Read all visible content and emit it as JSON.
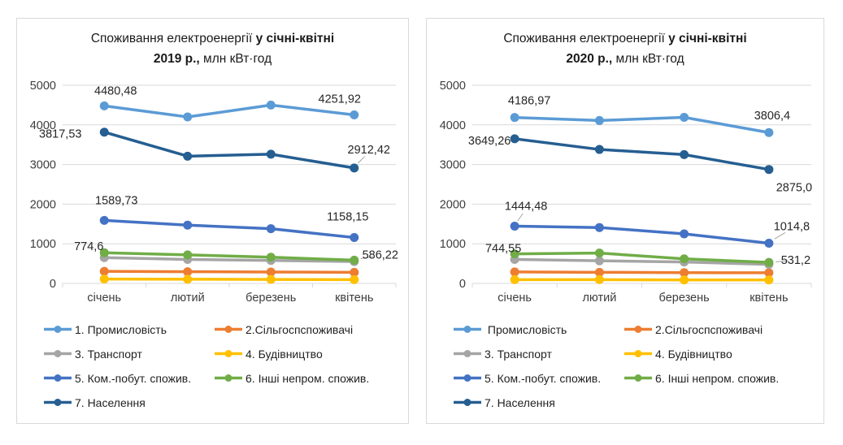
{
  "chart_data": [
    {
      "id": "2019",
      "type": "line",
      "title": {
        "prefix": "Споживання електроенергії ",
        "bold_range": "у січні-квітні",
        "bold_year": "2019 р.,",
        "suffix": " млн кВт·год"
      },
      "categories": [
        "січень",
        "лютий",
        "березень",
        "квітень"
      ],
      "y_ticks": [
        0,
        1000,
        2000,
        3000,
        4000,
        5000
      ],
      "ylim": [
        0,
        5000
      ],
      "grid": true,
      "legend_position": "bottom",
      "series": [
        {
          "name": "1. Промисловість",
          "color": "#5B9BD5",
          "values": [
            4480.48,
            4200,
            4500,
            4251.92
          ],
          "labels": [
            {
              "i": 0,
              "text": "4480,48",
              "dx": 14,
              "dy": -19
            },
            {
              "i": 3,
              "text": "4251,92",
              "dx": -18,
              "dy": -20
            }
          ]
        },
        {
          "name": "2.Сільгоспспоживачі",
          "color": "#ED7D31",
          "values": [
            305,
            295,
            288,
            280
          ],
          "labels": []
        },
        {
          "name": "3. Транспорт",
          "color": "#A5A5A5",
          "values": [
            650,
            605,
            580,
            550
          ],
          "labels": []
        },
        {
          "name": "4. Будівництво",
          "color": "#FFC000",
          "values": [
            110,
            105,
            100,
            95
          ],
          "labels": []
        },
        {
          "name": "5. Ком.-побут. спожив.",
          "color": "#4472C4",
          "values": [
            1589.73,
            1470,
            1380,
            1158.15
          ],
          "labels": [
            {
              "i": 0,
              "text": "1589,73",
              "dx": 15,
              "dy": -25
            },
            {
              "i": 3,
              "text": "1158,15",
              "dx": -8,
              "dy": -26
            }
          ]
        },
        {
          "name": "6. Інші непром. спожив.",
          "color": "#70AD47",
          "values": [
            774.6,
            720,
            660,
            586.22
          ],
          "labels": [
            {
              "i": 0,
              "text": "774,6",
              "dx": -19,
              "dy": -8
            },
            {
              "i": 3,
              "text": "586,22",
              "dx": 32,
              "dy": -7,
              "leader": true
            }
          ]
        },
        {
          "name": "7. Населення",
          "color": "#255E91",
          "values": [
            3817.53,
            3210,
            3260,
            2912.42
          ],
          "labels": [
            {
              "i": 0,
              "text": "3817,53",
              "dx": -54,
              "dy": 2
            },
            {
              "i": 3,
              "text": "2912,42",
              "dx": 18,
              "dy": -23,
              "leader": true
            }
          ]
        }
      ],
      "legend": [
        "1. Промисловість",
        "2.Сільгоспспоживачі",
        "3. Транспорт",
        "4. Будівництво",
        "5. Ком.-побут. спожив.",
        "6. Інші непром. спожив.",
        "7. Населення"
      ]
    },
    {
      "id": "2020",
      "type": "line",
      "title": {
        "prefix": "Споживання електроенергії ",
        "bold_range": "у січні-квітні",
        "bold_year": "2020 р.,",
        "suffix": " млн кВт·год"
      },
      "categories": [
        "січень",
        "лютий",
        "березень",
        "квітень"
      ],
      "y_ticks": [
        0,
        1000,
        2000,
        3000,
        4000,
        5000
      ],
      "ylim": [
        0,
        5000
      ],
      "grid": true,
      "legend_position": "bottom",
      "series": [
        {
          "name": "Промисловість",
          "color": "#5B9BD5",
          "values": [
            4186.97,
            4110,
            4190,
            3806.4
          ],
          "labels": [
            {
              "i": 0,
              "text": "4186,97",
              "dx": 18,
              "dy": -21
            },
            {
              "i": 3,
              "text": "3806,4",
              "dx": 4,
              "dy": -21
            }
          ]
        },
        {
          "name": "2.Сільгоспспоживачі",
          "color": "#ED7D31",
          "values": [
            290,
            280,
            272,
            268
          ],
          "labels": []
        },
        {
          "name": "3. Транспорт",
          "color": "#A5A5A5",
          "values": [
            605,
            570,
            540,
            480
          ],
          "labels": []
        },
        {
          "name": "4. Будівництво",
          "color": "#FFC000",
          "values": [
            95,
            95,
            88,
            88
          ],
          "labels": []
        },
        {
          "name": "5. Ком.-побут. спожив.",
          "color": "#4472C4",
          "values": [
            1444.48,
            1410,
            1250,
            1014.8
          ],
          "labels": [
            {
              "i": 0,
              "text": "1444,48",
              "dx": 14,
              "dy": -25,
              "leader": true
            },
            {
              "i": 3,
              "text": "1014,8",
              "dx": 28,
              "dy": -21,
              "leader": true
            }
          ]
        },
        {
          "name": "6. Інші непром. спожив.",
          "color": "#70AD47",
          "values": [
            744.55,
            765,
            620,
            531.2
          ],
          "labels": [
            {
              "i": 0,
              "text": "744,55",
              "dx": -14,
              "dy": -7
            },
            {
              "i": 3,
              "text": "531,2",
              "dx": 33,
              "dy": -3,
              "leader": true
            }
          ]
        },
        {
          "name": "7. Населення",
          "color": "#255E91",
          "values": [
            3649.26,
            3380,
            3250,
            2875.0
          ],
          "labels": [
            {
              "i": 0,
              "text": "3649,26",
              "dx": -31,
              "dy": 2
            },
            {
              "i": 3,
              "text": "2875,0",
              "dx": 31,
              "dy": 22
            }
          ]
        }
      ],
      "legend": [
        " Промисловість",
        "2.Сільгоспспоживачі",
        "3. Транспорт",
        "4. Будівництво",
        "5. Ком.-побут. спожив.",
        "6. Інші непром. спожив.",
        "7. Населення"
      ]
    }
  ],
  "colors": {
    "grid": "#d9d9d9",
    "leader": "#a6a6a6",
    "axis_text": "#3d3d3d",
    "label_text": "#262626"
  }
}
